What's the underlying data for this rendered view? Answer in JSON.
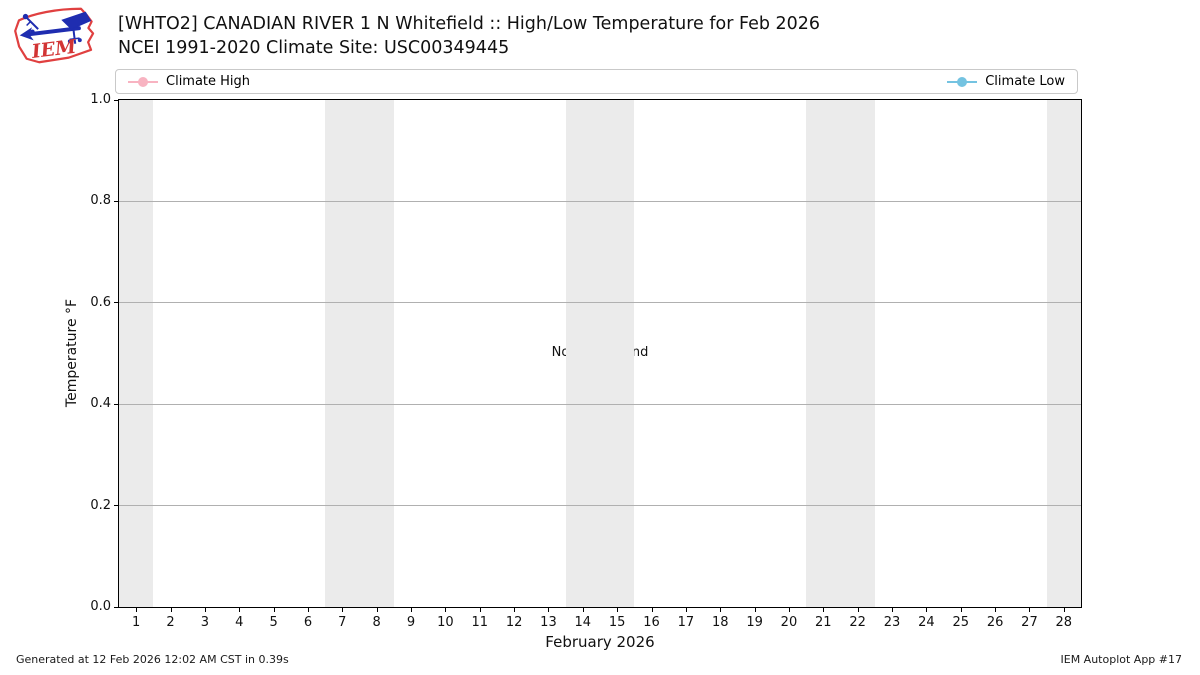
{
  "logo": {
    "text": "IEM"
  },
  "header": {
    "title": "[WHTO2] CANADIAN RIVER 1 N Whitefield :: High/Low Temperature for Feb 2026",
    "subtitle": "NCEI 1991-2020 Climate Site: USC00349445"
  },
  "legend": {
    "items": [
      {
        "label": "Climate High",
        "color": "#f8b3c1"
      },
      {
        "label": "Climate Low",
        "color": "#74c3e1"
      }
    ]
  },
  "chart_data": {
    "type": "line",
    "title": "[WHTO2] CANADIAN RIVER 1 N Whitefield :: High/Low Temperature for Feb 2026",
    "subtitle": "NCEI 1991-2020 Climate Site: USC00349445",
    "xlabel": "February 2026",
    "ylabel": "Temperature °F",
    "xlim": [
      0.5,
      28.5
    ],
    "ylim": [
      0.0,
      1.0
    ],
    "x_ticks": [
      1,
      2,
      3,
      4,
      5,
      6,
      7,
      8,
      9,
      10,
      11,
      12,
      13,
      14,
      15,
      16,
      17,
      18,
      19,
      20,
      21,
      22,
      23,
      24,
      25,
      26,
      27,
      28
    ],
    "y_ticks": [
      0.0,
      0.2,
      0.4,
      0.6,
      0.8,
      1.0
    ],
    "y_tick_labels": [
      "0.0",
      "0.2",
      "0.4",
      "0.6",
      "0.8",
      "1.0"
    ],
    "grid": "horizontal",
    "gridline_values": [
      0.2,
      0.4,
      0.6,
      0.8
    ],
    "legend_position": "top-expanded",
    "annotation": "No Data Found",
    "series": [
      {
        "name": "Climate High",
        "color": "#f8b3c1",
        "x": [],
        "values": []
      },
      {
        "name": "Climate Low",
        "color": "#74c3e1",
        "x": [],
        "values": []
      }
    ],
    "weekend_shading_x_ranges": [
      [
        0.5,
        1.5
      ],
      [
        6.5,
        8.5
      ],
      [
        13.5,
        15.5
      ],
      [
        20.5,
        22.5
      ],
      [
        27.5,
        28.5
      ]
    ],
    "colors": {
      "band": "#ebebeb",
      "grid": "#b0b0b0",
      "spine": "#000000"
    }
  },
  "footer": {
    "left": "Generated at 12 Feb 2026 12:02 AM CST in 0.39s",
    "right": "IEM Autoplot App #17"
  }
}
